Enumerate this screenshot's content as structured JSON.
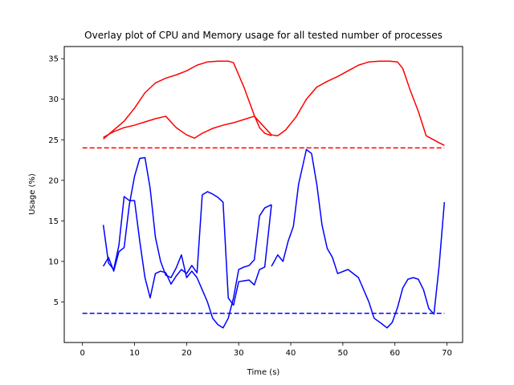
{
  "chart_data": {
    "type": "line",
    "title": "Overlay plot of CPU and Memory usage for all tested number of processes",
    "xlabel": "Time (s)",
    "ylabel": "Usage (%)",
    "xlim": [
      -3.5,
      73
    ],
    "ylim": [
      0,
      36.5
    ],
    "xticks": [
      0,
      10,
      20,
      30,
      40,
      50,
      60,
      70
    ],
    "yticks": [
      5,
      10,
      15,
      20,
      25,
      30,
      35
    ],
    "grid": false,
    "legend": "none",
    "series": [
      {
        "color": "#ff0000",
        "style": "solid",
        "x": [
          4,
          6,
          8,
          10,
          12,
          14,
          16,
          18,
          20,
          22,
          24,
          26,
          28,
          29,
          31,
          33,
          34,
          35,
          36.3
        ],
        "y": [
          25.1,
          26.2,
          27.3,
          28.9,
          30.8,
          32.0,
          32.6,
          33.0,
          33.5,
          34.2,
          34.6,
          34.7,
          34.7,
          34.5,
          31.5,
          28.0,
          26.5,
          25.8,
          25.5
        ]
      },
      {
        "color": "#ff0000",
        "style": "solid",
        "x": [
          4,
          6,
          8,
          10,
          12,
          14,
          16,
          18,
          20,
          21.5,
          23,
          25,
          27,
          29,
          31,
          33,
          36.3
        ],
        "y": [
          25.3,
          26.0,
          26.5,
          26.8,
          27.2,
          27.6,
          27.9,
          26.5,
          25.6,
          25.2,
          25.8,
          26.4,
          26.8,
          27.1,
          27.5,
          27.9,
          25.6
        ]
      },
      {
        "color": "#ff0000",
        "style": "solid",
        "x": [
          36.3,
          37.5,
          39,
          41,
          43,
          45,
          47,
          49,
          51,
          53,
          55,
          57,
          59,
          60.5,
          61.5,
          63,
          64.5,
          66,
          68,
          69.5
        ],
        "y": [
          25.6,
          25.5,
          26.2,
          27.8,
          30.0,
          31.5,
          32.2,
          32.8,
          33.5,
          34.2,
          34.6,
          34.7,
          34.7,
          34.6,
          33.8,
          31.0,
          28.5,
          25.5,
          24.8,
          24.3
        ]
      },
      {
        "color": "#ff0000",
        "style": "dashed",
        "x": [
          0,
          69.5
        ],
        "y": [
          24.0,
          24.0
        ]
      },
      {
        "color": "#0000ff",
        "style": "solid",
        "x": [
          4,
          5,
          6,
          7,
          8,
          9,
          10,
          11,
          12,
          13,
          14,
          15,
          16,
          17,
          18,
          19,
          20,
          21,
          22,
          23,
          24,
          25,
          26,
          27,
          28,
          29,
          30,
          31,
          32,
          33,
          34,
          35,
          36.3
        ],
        "y": [
          14.5,
          9.8,
          9.0,
          12.0,
          18.0,
          17.5,
          17.5,
          12.5,
          8.0,
          5.5,
          8.5,
          8.8,
          8.6,
          7.2,
          8.2,
          9.0,
          8.5,
          9.5,
          8.6,
          18.2,
          18.6,
          18.3,
          17.9,
          17.3,
          5.5,
          4.6,
          7.5,
          7.6,
          7.7,
          7.1,
          9.0,
          9.3,
          17.0
        ]
      },
      {
        "color": "#0000ff",
        "style": "solid",
        "x": [
          4,
          5,
          6,
          7,
          8,
          9,
          10,
          11,
          12,
          13,
          14,
          15,
          16,
          17,
          18,
          19,
          20,
          21,
          22,
          23,
          24,
          25,
          26,
          27,
          28,
          29,
          30,
          31,
          32,
          33,
          34,
          35,
          36.3
        ],
        "y": [
          9.4,
          10.5,
          8.8,
          11.2,
          11.7,
          17.0,
          20.5,
          22.7,
          22.8,
          19.0,
          13.0,
          10.0,
          8.3,
          8.0,
          9.2,
          10.8,
          8.0,
          8.8,
          8.0,
          6.5,
          5.0,
          3.0,
          2.2,
          1.8,
          3.0,
          5.5,
          9.0,
          9.3,
          9.5,
          10.2,
          15.6,
          16.6,
          17.0
        ]
      },
      {
        "color": "#0000ff",
        "style": "solid",
        "x": [
          36.3,
          37.5,
          38.5,
          39.5,
          40.5,
          41.5,
          43,
          44,
          45,
          46,
          47,
          48,
          49,
          51,
          53,
          55,
          56,
          57.5,
          58.5,
          59.5,
          60.5,
          61.5,
          62.5,
          63.5,
          64.5,
          65.5,
          66.5,
          67.5,
          68.5,
          69.5
        ],
        "y": [
          9.4,
          10.8,
          10.0,
          12.5,
          14.3,
          19.5,
          23.8,
          23.3,
          19.5,
          14.5,
          11.6,
          10.5,
          8.5,
          9.0,
          8.0,
          5.0,
          3.0,
          2.3,
          1.8,
          2.5,
          4.3,
          6.7,
          7.8,
          8.0,
          7.8,
          6.5,
          4.2,
          3.5,
          9.5,
          17.3
        ]
      },
      {
        "color": "#0000ff",
        "style": "dashed",
        "x": [
          0,
          69.5
        ],
        "y": [
          3.6,
          3.6
        ]
      }
    ]
  }
}
